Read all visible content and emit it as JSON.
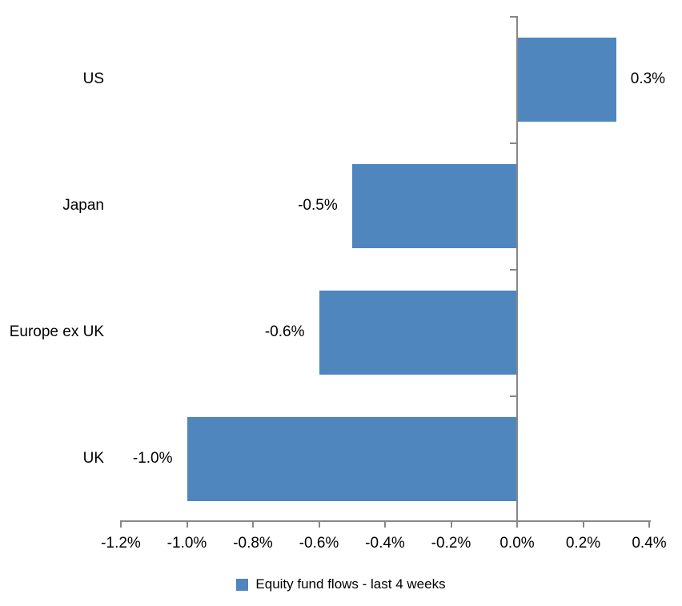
{
  "chart_data": {
    "type": "bar",
    "orientation": "horizontal",
    "title": "",
    "categories": [
      "US",
      "Japan",
      "Europe ex UK",
      "UK"
    ],
    "values": [
      0.3,
      -0.5,
      -0.6,
      -1.0
    ],
    "data_labels": [
      "0.3%",
      "-0.5%",
      "-0.6%",
      "-1.0%"
    ],
    "series_name": "Equity fund flows - last 4 weeks",
    "x_tick_labels": [
      "-1.2%",
      "-1.0%",
      "-0.8%",
      "-0.6%",
      "-0.4%",
      "-0.2%",
      "0.0%",
      "0.2%",
      "0.4%"
    ],
    "x_tick_values": [
      -1.2,
      -1.0,
      -0.8,
      -0.6,
      -0.4,
      -0.2,
      0.0,
      0.2,
      0.4
    ],
    "xlim": [
      -1.2,
      0.4
    ],
    "grid": "off",
    "legend_position": "bottom-center",
    "colors": {
      "bar": "#4E86BD",
      "axis": "#878787",
      "text": "#000000",
      "background": "#FFFFFF"
    }
  }
}
